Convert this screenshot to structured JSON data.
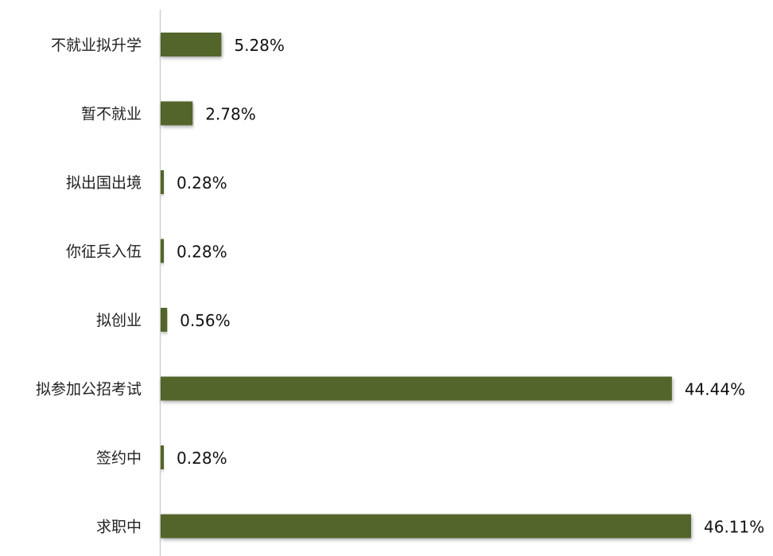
{
  "chart_data": {
    "type": "bar",
    "orientation": "horizontal",
    "categories": [
      "不就业拟升学",
      "暂不就业",
      "拟出国出境",
      "你征兵入伍",
      "拟创业",
      "拟参加公招考试",
      "签约中",
      "求职中"
    ],
    "values": [
      5.28,
      2.78,
      0.28,
      0.28,
      0.56,
      44.44,
      0.28,
      46.11
    ],
    "value_labels": [
      "5.28%",
      "2.78%",
      "0.28%",
      "0.28%",
      "0.56%",
      "44.44%",
      "0.28%",
      "46.11%"
    ],
    "unit": "%",
    "xlim": [
      0,
      46.11
    ],
    "grid": false,
    "legend": "none",
    "bar_color": "#52652a"
  }
}
